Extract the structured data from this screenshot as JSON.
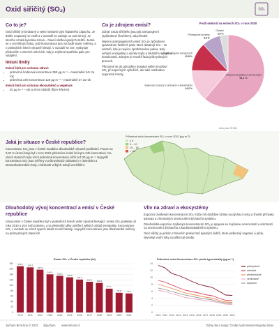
{
  "header": {
    "title": "Oxid siřičitý (SO₂)",
    "icon": "SO₂"
  },
  "what": {
    "heading": "Co to je?",
    "text": "Oxid siřičitý je bezbarvý a velmi reaktivní plyn štiplavého zápachu. Je dobře rozpustný ve vodě a v ovzduší se oxiduje na oxid sírový, ze kterého vzniká kyselina sírová – hlavní složka kyselých dešťů. Jedná se o znečišťující látku, jejíž koncentrace jsou na řadě stanic měřeny, a v posledních letech výrazně klesají. V ovzduší se SO₂ vyskytuje především v zimních měsících, kdy je zvýšená spotřeba paliv pro vytápění."
  },
  "limits": {
    "heading": "Imisní limity",
    "sub1": "Imisní limit pro ochranu zdraví:",
    "items1": [
      "průměrná hodinová koncentrace 350 µg·m⁻³ – maximálně 24× za rok",
      "průměrná 24h koncentrace 125 µg·m⁻³ – maximálně 3× za rok"
    ],
    "sub2": "Imisní limit pro ochranu ekosystémů a vegetace:",
    "items2": [
      "20 µg·m⁻³ – rok a zimní období (říjen–březen)"
    ]
  },
  "sources": {
    "heading": "Co je zdrojem emisí?",
    "paragraphs": [
      "Zdroje oxidu siřičitého jsou jak antropogenní (způsobené člověkem), tak přirodní.",
      "Nejvíce antropogenních emisí SO₂ je způsobeno spalováním fosilních paliv, která obsahují síru – ze sektorů, kde je nejvíce spotřebováno paliva, tedy veřejné energetiky a výroby tepla a lokálního vytápění domácností. Zdrojem je rovněž řada průmyslových procesů.",
      "Přirozeně se do atmosféry dostává velké množství SO₂ při sopečných výbuších, ale také rozkladem organické hmoty."
    ]
  },
  "situation": {
    "heading": "Jaká je situace v České republice?",
    "text": "Koncentrace SO₂ jsou v České republice dlouhodobě výrazně podlimitní. Pouze na 0,02 % území kraje byl v roce 2021 překročen imisní limit pro 24h koncentraci. Na všech stanicích byla roční průměrná koncentrace nižší než 20 µg·m⁻³. Nejvyšší koncentrace SO₂ jsou měřeny v průmyslových oblastech v Ústeckém a Moravskoslezském kraji, v blízkosti velkých zdrojů znečištění.",
    "legend_title": "Průměrná roční koncentrace SO₂ v roce 2021 (µg·m⁻³)",
    "legend": [
      {
        "label": "≤ 5",
        "color": "#cfe6b8"
      },
      {
        "label": "5 – 10",
        "color": "#9fce7c"
      },
      {
        "label": "10 – 15",
        "color": "#f3c37a"
      },
      {
        "label": "> 15",
        "color": "#d9534f"
      }
    ]
  },
  "trend": {
    "heading": "Dlouhodobý vývoj koncentrací a emisí v České republice",
    "text": "Vývoj emisí v České republice byl v posledních letech velmi výrazně klesající: emise SO₂ poklesly od roku 2010 o více než polovinu, a to především díky odsíření velkých zdrojů energetiky. Koncentrace SO₂ v ovzduší ve všech typech lokalit rovněž klesají. Nejvyšší koncentrace jsou dlouhodobě měřeny na průmyslových stanicích."
  },
  "health": {
    "heading": "Vliv na zdraví a ekosystémy",
    "paragraphs": [
      "Expozice zvýšeným koncentracím SO₂ může mít dráždivé účinky na dýchací cesty a zhoršit příznaky astmatu a chronických onemocnění dýchacího systému.",
      "Dlouhodobá expozice zvýšeným koncentracím SO₂ je spojena se zvýšenou nemocností a úmrtností na onemocnění dýchacího a kardiovaskulárního systému.",
      "Oxid siřičitý je jedním z hlavních prekurzorů kyselých dešťů, které poškozují vegetaci a půdu, okyselují vodní toky a poškozují stavby."
    ]
  },
  "footer": {
    "author": "Jáchym Brzezina © 2023",
    "handle": "@jachym",
    "web": "www.infovis.cz",
    "source": "Zdroj dat a mapy: Český hydrometeorologický ústav"
  },
  "chart_data": [
    {
      "type": "pie",
      "title": "Podíl sektorů na emisích SO₂ v roce 2020",
      "source": "Zdroj dat: ČHMÚ",
      "categories": [
        "Veřejná energetika a výroba tepla",
        "Spalovací procesy v průmyslu a stavebnictví",
        "Lokální vytápění domácností",
        "Průmyslové procesy",
        "Ostatní"
      ],
      "values": [
        61.1,
        14.2,
        12.8,
        8.3,
        3.6
      ],
      "value_labels": [
        "61,1 %",
        "14,2 %",
        "12,8 %",
        "8,3 %",
        "3,6 %"
      ],
      "colors": [
        "#e9a6c0",
        "#f5cadb",
        "#c7304a",
        "#b8a3c9",
        "#dddddd"
      ]
    },
    {
      "type": "bar",
      "title": "Emise SO₂ v České republice (kt)",
      "color": "#9e1b32",
      "categories": [
        "2010",
        "2011",
        "2012",
        "2013",
        "2014",
        "2015",
        "2016",
        "2017",
        "2018",
        "2019",
        "2020",
        "2021"
      ],
      "values": [
        170.5,
        166.3,
        157.9,
        140.6,
        135.2,
        129.6,
        121.4,
        113.2,
        108.9,
        87.7,
        72.6,
        70.1
      ],
      "ylim": [
        0,
        180
      ],
      "yticks": [
        0,
        20,
        40,
        60,
        80,
        100,
        120,
        140,
        160,
        180
      ],
      "grid": true
    },
    {
      "type": "line",
      "title": "Průměrné roční koncentrace SO₂ podle typu lokality (µg·m⁻³)",
      "categories": [
        "2010",
        "2011",
        "2012",
        "2013",
        "2014",
        "2015",
        "2016",
        "2017",
        "2018",
        "2019",
        "2020",
        "2021"
      ],
      "series": [
        {
          "name": "průmyslové",
          "color": "#7a1228",
          "values": [
            13.5,
            12.8,
            11.2,
            10.6,
            9.8,
            8.9,
            8.1,
            7.6,
            7.2,
            6.1,
            5.0,
            4.9
          ]
        },
        {
          "name": "městské",
          "color": "#d6405a",
          "values": [
            9.2,
            8.7,
            7.9,
            7.1,
            6.4,
            6.0,
            5.6,
            5.1,
            4.8,
            4.1,
            3.5,
            3.4
          ]
        },
        {
          "name": "předměstské",
          "color": "#f08a4b",
          "values": [
            8.1,
            7.5,
            6.9,
            6.3,
            5.6,
            5.2,
            4.8,
            4.4,
            4.1,
            3.5,
            3.0,
            2.9
          ]
        },
        {
          "name": "venkovské",
          "color": "#e9a6c0",
          "values": [
            6.4,
            6.0,
            5.4,
            4.9,
            4.3,
            4.0,
            3.7,
            3.4,
            3.2,
            2.8,
            2.4,
            2.3
          ]
        },
        {
          "name": "dopravní",
          "color": "#9a9a9a",
          "values": [
            7.0,
            6.6,
            6.0,
            5.5,
            5.0,
            4.6,
            4.2,
            3.9,
            3.6,
            3.1,
            2.7,
            2.6
          ]
        }
      ],
      "ylim": [
        0,
        14
      ],
      "yticks": [
        0,
        2,
        4,
        6,
        8,
        10,
        12,
        14
      ],
      "grid": true
    }
  ]
}
